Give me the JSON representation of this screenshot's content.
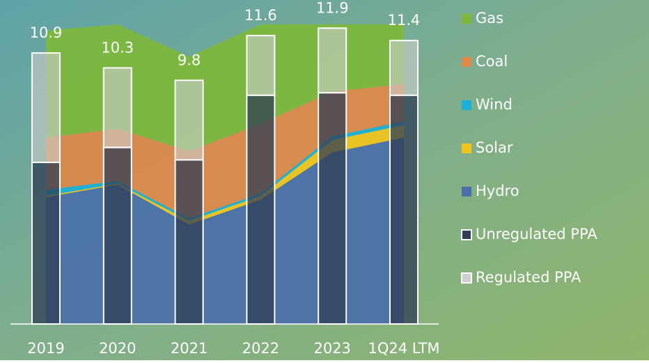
{
  "chart_data": {
    "type": "combo",
    "categories": [
      "2019",
      "2020",
      "2021",
      "2022",
      "2023",
      "1Q24 LTM"
    ],
    "totals": [
      10.9,
      10.3,
      9.8,
      11.6,
      11.9,
      11.4
    ],
    "area_series": [
      {
        "name": "Hydro",
        "color": "#4a6fa8",
        "values": [
          5.1,
          5.6,
          4.0,
          5.0,
          6.9,
          7.5
        ]
      },
      {
        "name": "Solar",
        "color": "#f2c41a",
        "values": [
          0.05,
          0.05,
          0.15,
          0.15,
          0.5,
          0.5
        ]
      },
      {
        "name": "Wind",
        "color": "#1ab0d8",
        "values": [
          0.25,
          0.1,
          0.1,
          0.1,
          0.15,
          0.15
        ]
      },
      {
        "name": "Coal",
        "color": "#e0884a",
        "values": [
          2.1,
          2.1,
          2.7,
          2.8,
          1.8,
          1.5
        ]
      },
      {
        "name": "Gas",
        "color": "#7db83a",
        "values": [
          4.3,
          4.2,
          3.8,
          4.0,
          2.7,
          2.4
        ]
      }
    ],
    "bar_series": [
      {
        "name": "Unregulated PPA",
        "color": "#2f3d55",
        "values": [
          6.5,
          7.1,
          6.6,
          9.2,
          9.3,
          9.2
        ]
      },
      {
        "name": "Regulated PPA",
        "color": "#cfcfcf",
        "values": [
          4.4,
          3.2,
          3.2,
          2.4,
          2.6,
          2.2
        ]
      }
    ]
  }
}
